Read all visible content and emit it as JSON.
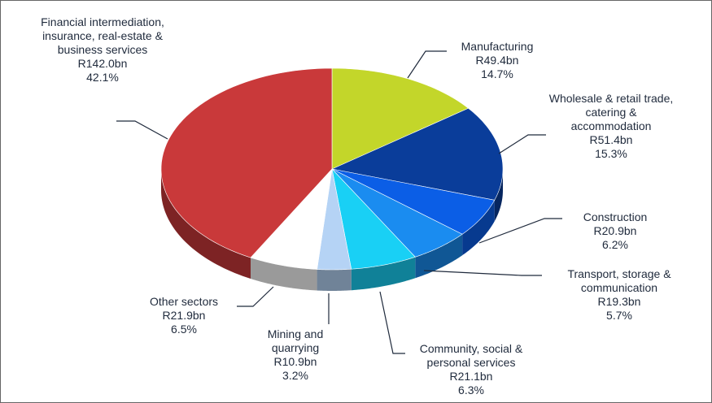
{
  "chart_data": {
    "type": "pie",
    "categories": [
      "Manufacturing",
      "Wholesale & retail trade, catering & accommodation",
      "Construction",
      "Transport, storage & communication",
      "Community, social & personal services",
      "Mining and quarrying",
      "Other sectors",
      "Financial intermediation, insurance, real-estate & business services"
    ],
    "values": [
      14.7,
      15.3,
      6.2,
      5.7,
      6.3,
      3.2,
      6.5,
      42.1
    ],
    "value_labels": [
      "14.7%",
      "15.3%",
      "6.2%",
      "5.7%",
      "6.3%",
      "3.2%",
      "6.5%",
      "42.1%"
    ],
    "amount_labels": [
      "R49.4bn",
      "R51.4bn",
      "R20.9bn",
      "R19.3bn",
      "R21.1bn",
      "R10.9bn",
      "R21.9bn",
      "R142.0bn"
    ],
    "colors": [
      "#c3d62a",
      "#0a3d9a",
      "#0b5ee6",
      "#1a8cf0",
      "#19d0f5",
      "#b5d3f5",
      "#ffffff",
      "#c9393a"
    ]
  }
}
